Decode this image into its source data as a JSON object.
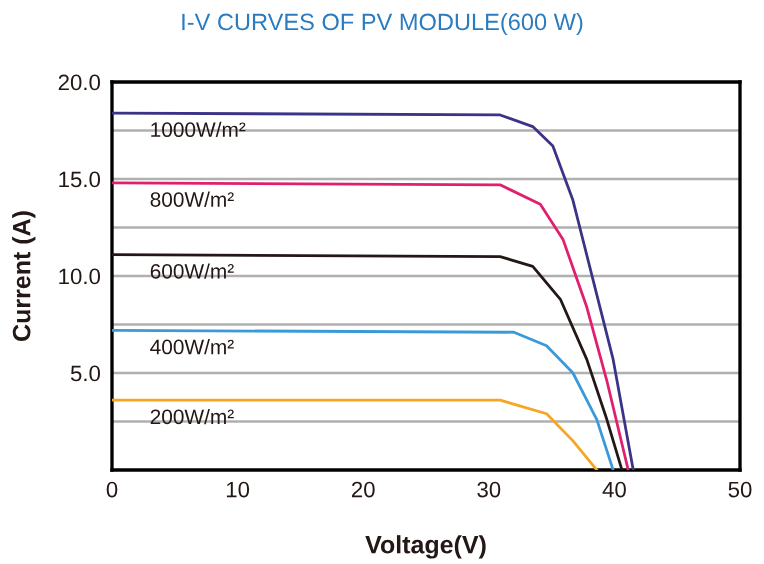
{
  "chart_data": {
    "type": "line",
    "title": "I-V CURVES OF PV MODULE(600 W)",
    "xlabel": "Voltage(V)",
    "ylabel": "Current (A)",
    "xlim": [
      0,
      50
    ],
    "xticks": [
      0,
      10,
      20,
      30,
      40,
      50
    ],
    "ylim": [
      0,
      20
    ],
    "yticks": [
      {
        "value": 2.5,
        "label": null
      },
      {
        "value": 5,
        "label": "5.0"
      },
      {
        "value": 7.5,
        "label": null
      },
      {
        "value": 10,
        "label": "10.0"
      },
      {
        "value": 12.5,
        "label": null
      },
      {
        "value": 15,
        "label": "15.0"
      },
      {
        "value": 17.5,
        "label": null
      },
      {
        "value": 20,
        "label": "20.0"
      }
    ],
    "grid": "y",
    "marker": "none",
    "line_style": "solid",
    "series": [
      {
        "name": "1000W/m²",
        "color": "#3b3486",
        "x": [
          0,
          30.9,
          33.5,
          35.1,
          36.7,
          38.3,
          39.9,
          41.5
        ],
        "values": [
          18.4,
          18.3,
          17.7,
          16.7,
          13.9,
          9.8,
          5.7,
          0
        ]
      },
      {
        "name": "800W/m²",
        "color": "#e0206e",
        "x": [
          0,
          30.9,
          34.1,
          35.9,
          37.8,
          39.4,
          41.1
        ],
        "values": [
          14.8,
          14.7,
          13.7,
          11.9,
          8.4,
          4.6,
          0
        ]
      },
      {
        "name": "600W/m²",
        "color": "#231815",
        "x": [
          0,
          30.9,
          33.5,
          35.7,
          37.8,
          39.4,
          40.6
        ],
        "values": [
          11.1,
          11.0,
          10.5,
          8.8,
          5.7,
          2.6,
          0
        ]
      },
      {
        "name": "400W/m²",
        "color": "#3a9ad9",
        "x": [
          0,
          32.0,
          34.6,
          36.7,
          38.6,
          39.9
        ],
        "values": [
          7.2,
          7.1,
          6.4,
          5.0,
          2.6,
          0
        ]
      },
      {
        "name": "200W/m²",
        "color": "#f5a623",
        "x": [
          0,
          30.9,
          34.6,
          36.7,
          38.6
        ],
        "values": [
          3.6,
          3.6,
          2.9,
          1.5,
          0
        ]
      }
    ]
  }
}
